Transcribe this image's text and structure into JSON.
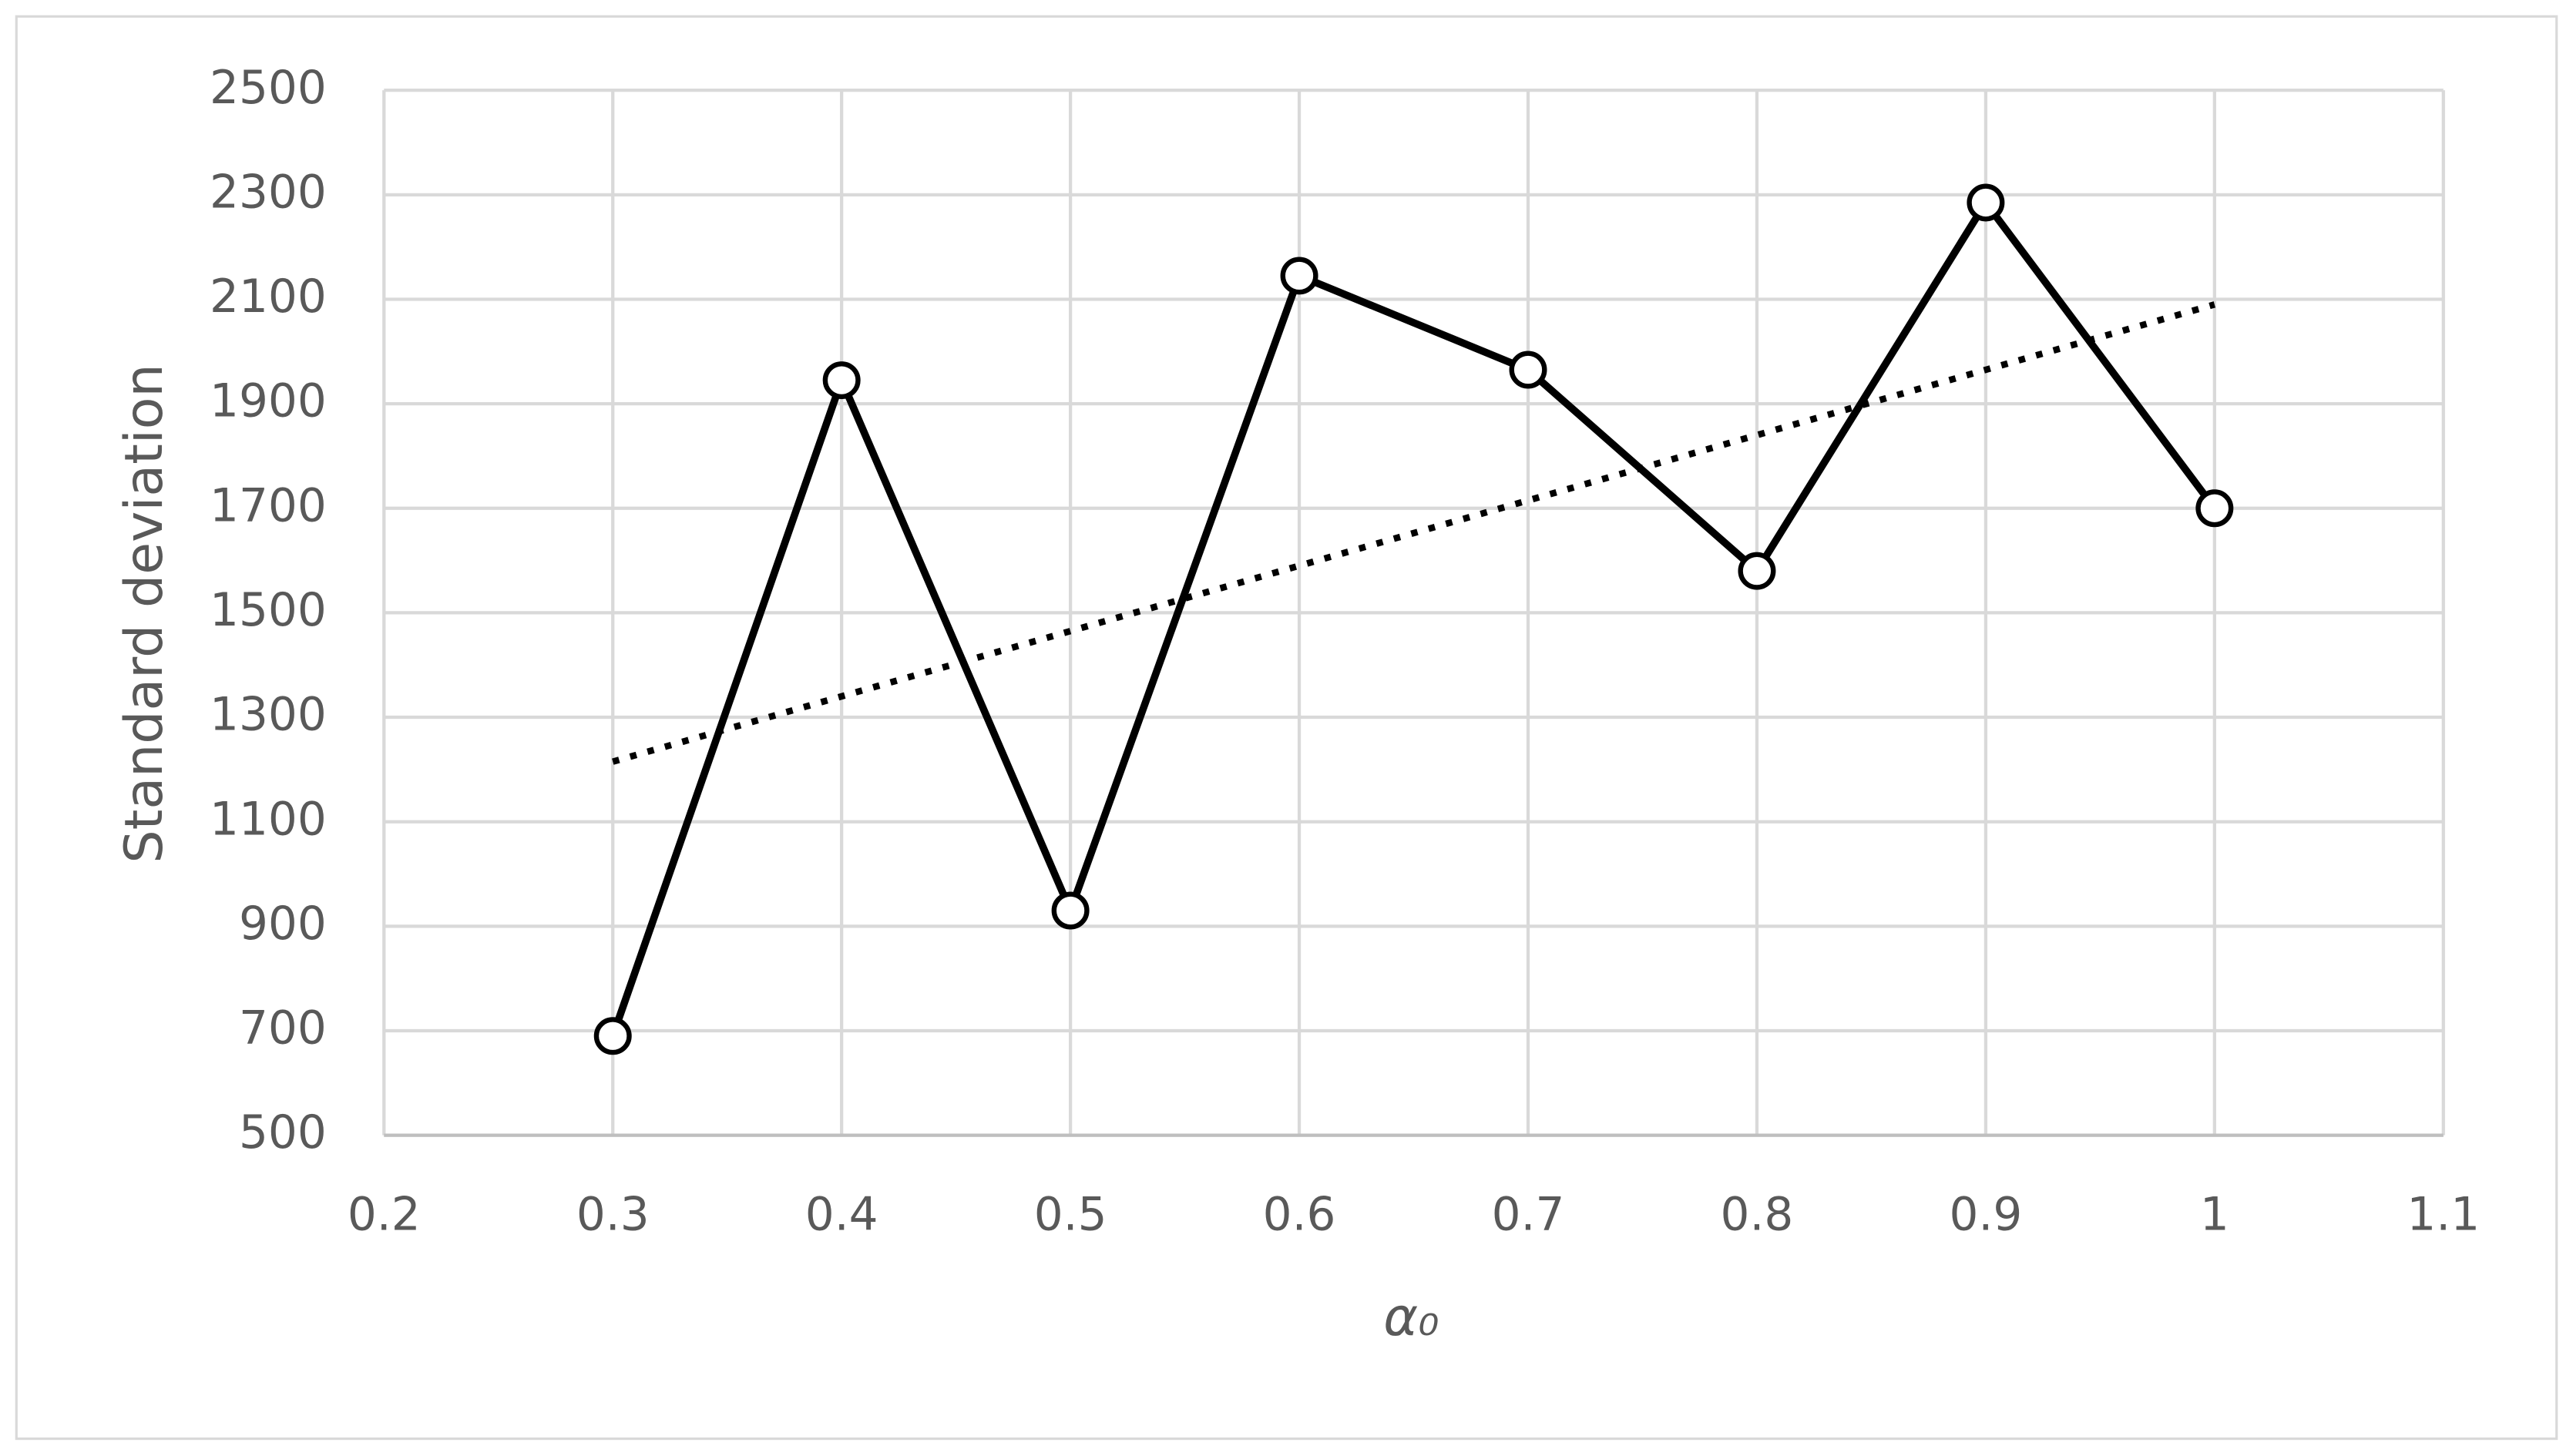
{
  "chart_data": {
    "type": "line",
    "x_label": "α₀",
    "y_label": "Standard deviation",
    "x": [
      0.3,
      0.4,
      0.5,
      0.6,
      0.7,
      0.8,
      0.9,
      1
    ],
    "series": [
      {
        "color": "#000000",
        "values": [
          690,
          1945,
          930,
          2145,
          1965,
          1580,
          2285,
          1700
        ]
      }
    ],
    "trendline": {
      "x": [
        0.3,
        1
      ],
      "values": [
        1215,
        2090
      ],
      "color": "#000000",
      "style": "dotted"
    },
    "xlim": [
      0.2,
      1.1
    ],
    "xticks": [
      0.2,
      0.3,
      0.4,
      0.5,
      0.6,
      0.7,
      0.8,
      0.9,
      1,
      1.1
    ],
    "ylim": [
      500,
      2500
    ],
    "yticks": [
      500,
      700,
      900,
      1100,
      1300,
      1500,
      1700,
      1900,
      2100,
      2300,
      2500
    ],
    "grid": true
  }
}
